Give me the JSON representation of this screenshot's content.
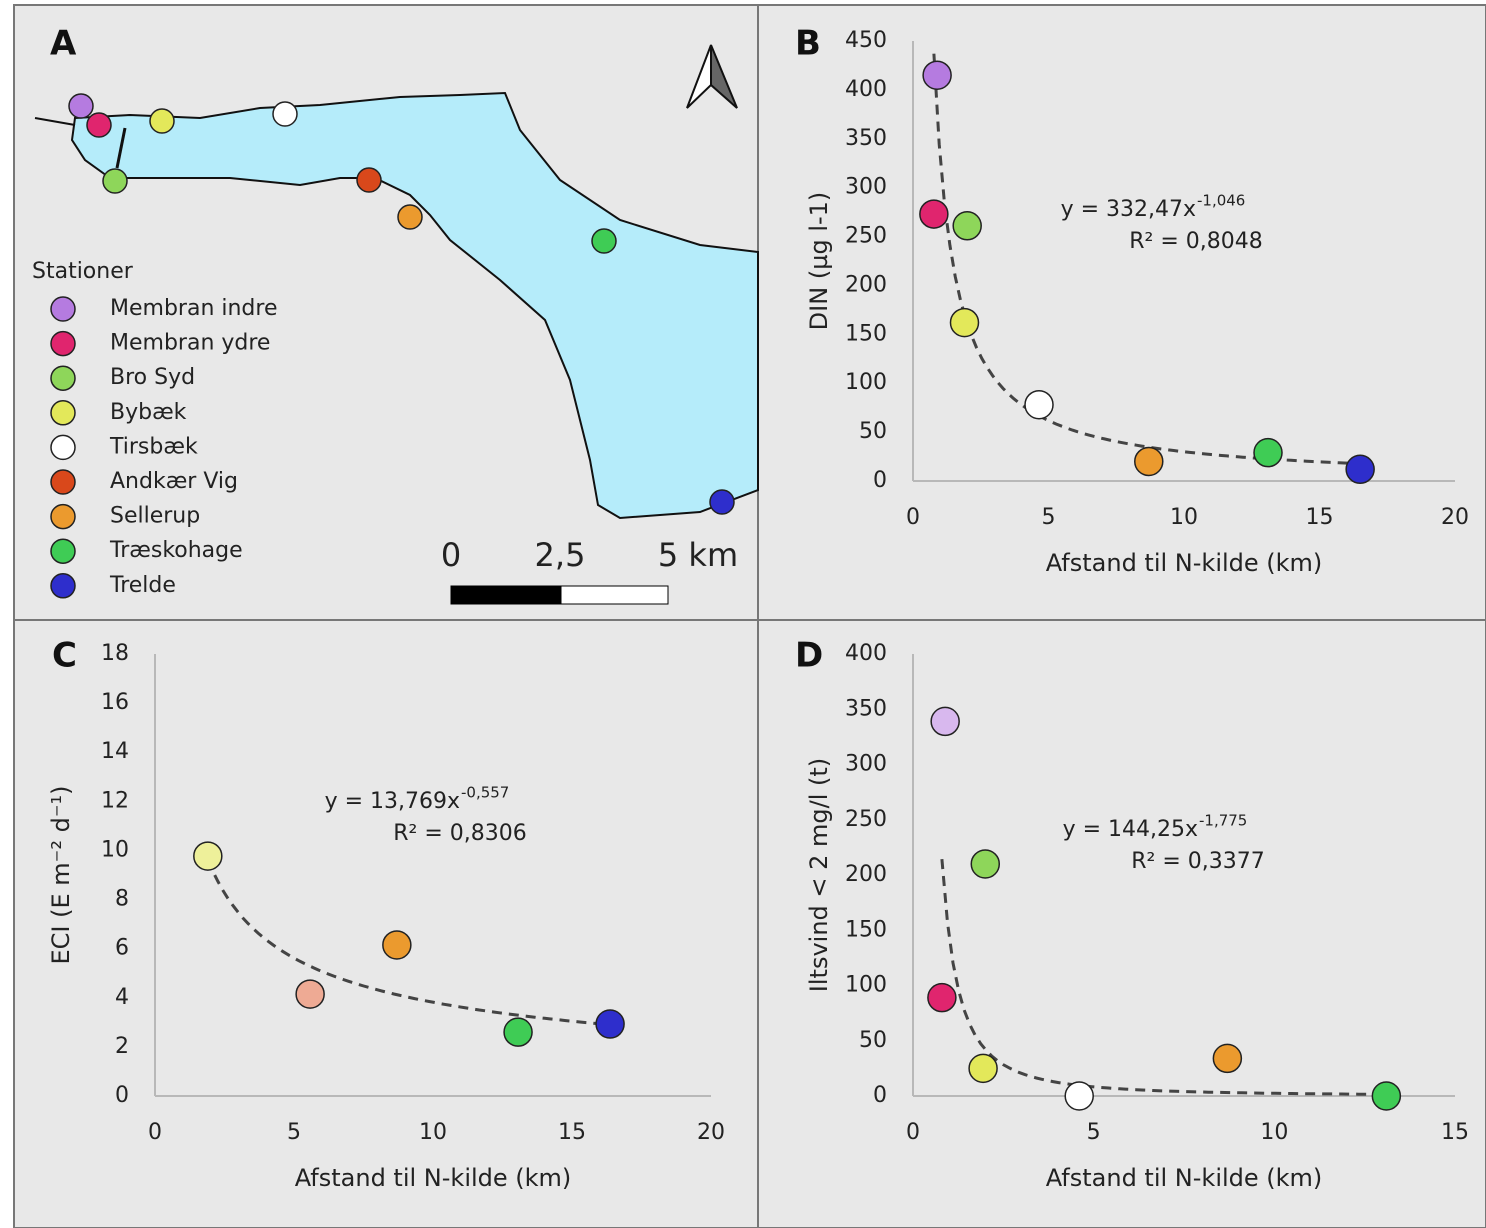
{
  "map": {
    "label": "A",
    "legend_title": "Stationer",
    "stations": [
      {
        "name": "Membran indre",
        "color": "#b57be0"
      },
      {
        "name": "Membran ydre",
        "color": "#e0256e"
      },
      {
        "name": "Bro Syd",
        "color": "#8ed65a"
      },
      {
        "name": "Bybæk",
        "color": "#e3e85a"
      },
      {
        "name": "Tirsbæk",
        "color": "#ffffff"
      },
      {
        "name": "Andkær Vig",
        "color": "#d9481b"
      },
      {
        "name": "Sellerup",
        "color": "#eb9a2e"
      },
      {
        "name": "Træskohage",
        "color": "#3fcc55"
      },
      {
        "name": "Trelde",
        "color": "#2e2ecc"
      }
    ],
    "scale_labels": [
      "0",
      "2,5",
      "5 km"
    ]
  },
  "chart_data": [
    {
      "type": "scatter",
      "label": "B",
      "xlabel": "Afstand til N-kilde (km)",
      "ylabel": "DIN (µg l-1)",
      "xlim": [
        0,
        20
      ],
      "xticks": [
        0,
        5,
        10,
        15,
        20
      ],
      "ylim": [
        0,
        450
      ],
      "yticks": [
        0,
        50,
        100,
        150,
        200,
        250,
        300,
        350,
        400,
        450
      ],
      "x": [
        0.89,
        0.77,
        2.0,
        1.9,
        4.65,
        8.7,
        13.1,
        16.5
      ],
      "values": [
        415,
        273,
        261,
        162,
        78,
        20,
        29,
        12
      ],
      "colors": [
        "#b57be0",
        "#e0256e",
        "#8ed65a",
        "#e3e85a",
        "#ffffff",
        "#eb9a2e",
        "#3fcc55",
        "#2e2ecc"
      ],
      "equation": "y = 332,47x",
      "exponent": "-1,046",
      "r2": "R² = 0,8048"
    },
    {
      "type": "scatter",
      "label": "C",
      "xlabel": "Afstand til N-kilde (km)",
      "ylabel": "ECI (E m⁻² d⁻¹)",
      "xlim": [
        0,
        20
      ],
      "xticks": [
        0,
        5,
        10,
        15,
        20
      ],
      "ylim": [
        0,
        18
      ],
      "yticks": [
        0,
        2,
        4,
        6,
        8,
        10,
        12,
        14,
        16,
        18
      ],
      "x": [
        1.9,
        5.58,
        8.7,
        13.06,
        16.37
      ],
      "values": [
        9.77,
        4.15,
        6.15,
        2.6,
        2.93
      ],
      "colors": [
        "#eef09a",
        "#eeaa94",
        "#eb9a2e",
        "#3fcc55",
        "#2e2ecc"
      ],
      "equation": "y = 13,769x",
      "exponent": "-0,557",
      "r2": "R² = 0,8306"
    },
    {
      "type": "scatter",
      "label": "D",
      "xlabel": "Afstand til N-kilde (km)",
      "ylabel": "Iltsvind < 2 mg/l (t)",
      "xlim": [
        0,
        15
      ],
      "xticks": [
        0,
        5,
        10,
        15
      ],
      "ylim": [
        0,
        400
      ],
      "yticks": [
        0,
        50,
        100,
        150,
        200,
        250,
        300,
        350,
        400
      ],
      "x": [
        0.89,
        2.0,
        0.8,
        1.94,
        4.6,
        8.7,
        13.1
      ],
      "values": [
        339,
        210,
        89,
        25,
        0,
        34,
        0
      ],
      "colors": [
        "#d8b8ee",
        "#8ed65a",
        "#e0256e",
        "#e3e85a",
        "#ffffff",
        "#eb9a2e",
        "#3fcc55"
      ],
      "equation": "y = 144,25x",
      "exponent": "-1,775",
      "r2": "R² = 0,3377"
    }
  ]
}
